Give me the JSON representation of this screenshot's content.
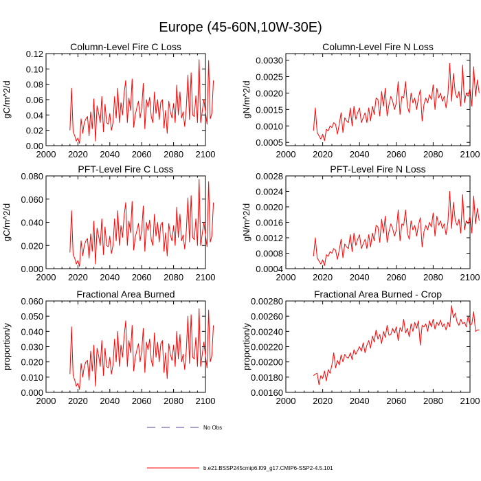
{
  "figure_title": "Europe (45-60N,10W-30E)",
  "legend": [
    {
      "label": "No Obs",
      "style": "dashed",
      "color": "#5a3d9b"
    },
    {
      "label": "b.e21.BSSP245cmip6.f09_g17.CMIP6-SSP2-4.5.101",
      "style": "solid",
      "color": "#ff0000"
    }
  ],
  "chart_data": [
    {
      "type": "line",
      "title": "Column-Level Fire C Loss",
      "xlabel": "",
      "ylabel": "gC/m^2/d",
      "xlim": [
        2000,
        2100
      ],
      "ylim": [
        0,
        0.12
      ],
      "xticks": [
        2000,
        2020,
        2040,
        2060,
        2080,
        2100
      ],
      "yticks": [
        0,
        0.02,
        0.04,
        0.06,
        0.08,
        0.1,
        0.12
      ],
      "ytick_labels": [
        "0.00",
        "0.02",
        "0.04",
        "0.06",
        "0.08",
        "0.10",
        "0.12"
      ],
      "x_start": 2015,
      "line_color": "#ff0000",
      "values": [
        0.02,
        0.075,
        0.018,
        0.013,
        0.006,
        0.01,
        0.003,
        0.035,
        0.016,
        0.03,
        0.035,
        0.038,
        0.013,
        0.044,
        0.022,
        0.061,
        0.006,
        0.052,
        0.042,
        0.03,
        0.064,
        0.018,
        0.054,
        0.03,
        0.028,
        0.042,
        0.02,
        0.03,
        0.064,
        0.036,
        0.075,
        0.03,
        0.056,
        0.04,
        0.069,
        0.085,
        0.03,
        0.062,
        0.046,
        0.087,
        0.024,
        0.04,
        0.05,
        0.058,
        0.036,
        0.049,
        0.081,
        0.022,
        0.06,
        0.05,
        0.063,
        0.038,
        0.03,
        0.07,
        0.042,
        0.06,
        0.034,
        0.057,
        0.06,
        0.023,
        0.046,
        0.016,
        0.058,
        0.044,
        0.036,
        0.055,
        0.03,
        0.079,
        0.04,
        0.07,
        0.036,
        0.044,
        0.025,
        0.05,
        0.092,
        0.034,
        0.095,
        0.04,
        0.038,
        0.065,
        0.03,
        0.112,
        0.03,
        0.045,
        0.06,
        0.044,
        0.028,
        0.111,
        0.035,
        0.042,
        0.085
      ]
    },
    {
      "type": "line",
      "title": "Column-Level Fire N Loss",
      "xlabel": "",
      "ylabel": "gN/m^2/d",
      "xlim": [
        2000,
        2100
      ],
      "ylim": [
        0.0004,
        0.0032
      ],
      "xticks": [
        2000,
        2020,
        2040,
        2060,
        2080,
        2100
      ],
      "yticks": [
        0.0005,
        0.001,
        0.0015,
        0.002,
        0.0025,
        0.003
      ],
      "ytick_labels": [
        "0.0005",
        "0.0010",
        "0.0015",
        "0.0020",
        "0.0025",
        "0.0030"
      ],
      "x_start": 2015,
      "line_color": "#ff0000",
      "values": [
        0.00085,
        0.00155,
        0.0008,
        0.0007,
        0.0006,
        0.00075,
        0.00055,
        0.0009,
        0.00085,
        0.001,
        0.00095,
        0.0011,
        0.00105,
        0.00075,
        0.00105,
        0.0014,
        0.0008,
        0.00125,
        0.00115,
        0.0011,
        0.00155,
        0.001,
        0.0016,
        0.0012,
        0.0014,
        0.00155,
        0.0011,
        0.00125,
        0.0014,
        0.0011,
        0.00155,
        0.00115,
        0.0016,
        0.00135,
        0.00185,
        0.0018,
        0.0013,
        0.00205,
        0.0016,
        0.00215,
        0.0013,
        0.00165,
        0.0019,
        0.00175,
        0.0015,
        0.0017,
        0.00235,
        0.00135,
        0.0019,
        0.00185,
        0.00235,
        0.0016,
        0.0014,
        0.002,
        0.0017,
        0.00185,
        0.0015,
        0.00185,
        0.0021,
        0.00115,
        0.00165,
        0.00185,
        0.0017,
        0.00195,
        0.0018,
        0.00225,
        0.0015,
        0.00215,
        0.00185,
        0.002,
        0.00175,
        0.0019,
        0.00155,
        0.00195,
        0.0029,
        0.00175,
        0.0026,
        0.002,
        0.00185,
        0.00205,
        0.0016,
        0.00285,
        0.0017,
        0.002,
        0.0019,
        0.00215,
        0.0016,
        0.0028,
        0.0019,
        0.0024,
        0.002
      ]
    },
    {
      "type": "line",
      "title": "PFT-Level Fire C Loss",
      "xlabel": "",
      "ylabel": "gC/m^2/d",
      "xlim": [
        2000,
        2100
      ],
      "ylim": [
        0,
        0.08
      ],
      "xticks": [
        2000,
        2020,
        2040,
        2060,
        2080,
        2100
      ],
      "yticks": [
        0,
        0.02,
        0.04,
        0.06,
        0.08
      ],
      "ytick_labels": [
        "0.000",
        "0.020",
        "0.040",
        "0.060",
        "0.080"
      ],
      "x_start": 2015,
      "line_color": "#ff0000",
      "values": [
        0.014,
        0.05,
        0.012,
        0.009,
        0.004,
        0.007,
        0.002,
        0.024,
        0.011,
        0.02,
        0.024,
        0.026,
        0.009,
        0.03,
        0.015,
        0.041,
        0.004,
        0.035,
        0.028,
        0.02,
        0.043,
        0.012,
        0.036,
        0.02,
        0.019,
        0.028,
        0.013,
        0.02,
        0.043,
        0.024,
        0.05,
        0.02,
        0.037,
        0.027,
        0.046,
        0.057,
        0.02,
        0.041,
        0.031,
        0.058,
        0.016,
        0.027,
        0.033,
        0.039,
        0.024,
        0.033,
        0.054,
        0.015,
        0.04,
        0.033,
        0.042,
        0.025,
        0.02,
        0.047,
        0.028,
        0.04,
        0.023,
        0.038,
        0.04,
        0.015,
        0.031,
        0.011,
        0.039,
        0.029,
        0.024,
        0.037,
        0.02,
        0.053,
        0.027,
        0.047,
        0.024,
        0.029,
        0.017,
        0.033,
        0.061,
        0.023,
        0.063,
        0.027,
        0.025,
        0.043,
        0.02,
        0.077,
        0.02,
        0.03,
        0.04,
        0.029,
        0.019,
        0.075,
        0.023,
        0.028,
        0.057
      ]
    },
    {
      "type": "line",
      "title": "PFT-Level Fire N Loss",
      "xlabel": "",
      "ylabel": "gN/m^2/d",
      "xlim": [
        2000,
        2100
      ],
      "ylim": [
        0.0004,
        0.0028
      ],
      "xticks": [
        2000,
        2020,
        2040,
        2060,
        2080,
        2100
      ],
      "yticks": [
        0.0004,
        0.0008,
        0.0012,
        0.0016,
        0.002,
        0.0024,
        0.0028
      ],
      "ytick_labels": [
        "0.0004",
        "0.0008",
        "0.0012",
        "0.0016",
        "0.0020",
        "0.0024",
        "0.0028"
      ],
      "x_start": 2015,
      "line_color": "#ff0000",
      "values": [
        0.00072,
        0.0012,
        0.00068,
        0.0006,
        0.00052,
        0.00063,
        0.00048,
        0.00076,
        0.00072,
        0.00084,
        0.0008,
        0.00092,
        0.00088,
        0.00064,
        0.00088,
        0.00116,
        0.00068,
        0.00104,
        0.00096,
        0.00092,
        0.00128,
        0.00084,
        0.00132,
        0.001,
        0.00116,
        0.00128,
        0.00092,
        0.00104,
        0.00116,
        0.00092,
        0.00128,
        0.00096,
        0.00132,
        0.00112,
        0.00152,
        0.00148,
        0.00108,
        0.00168,
        0.00132,
        0.00176,
        0.00108,
        0.00136,
        0.00156,
        0.00144,
        0.00124,
        0.0014,
        0.00192,
        0.00112,
        0.00156,
        0.00152,
        0.00192,
        0.00132,
        0.00116,
        0.00164,
        0.0014,
        0.00152,
        0.00124,
        0.00152,
        0.00172,
        0.00096,
        0.00136,
        0.00152,
        0.0014,
        0.0016,
        0.00148,
        0.00184,
        0.00124,
        0.00176,
        0.00152,
        0.00164,
        0.00144,
        0.00156,
        0.00128,
        0.0016,
        0.0024,
        0.00144,
        0.00212,
        0.00164,
        0.00152,
        0.00168,
        0.00132,
        0.00232,
        0.0014,
        0.00164,
        0.00156,
        0.00176,
        0.00132,
        0.00228,
        0.00156,
        0.00196,
        0.00164
      ]
    },
    {
      "type": "line",
      "title": "Fractional Area Burned",
      "xlabel": "",
      "ylabel": "proportion/y",
      "xlim": [
        2000,
        2100
      ],
      "ylim": [
        0,
        0.06
      ],
      "xticks": [
        2000,
        2020,
        2040,
        2060,
        2080,
        2100
      ],
      "yticks": [
        0,
        0.01,
        0.02,
        0.03,
        0.04,
        0.05,
        0.06
      ],
      "ytick_labels": [
        "0.000",
        "0.010",
        "0.020",
        "0.030",
        "0.040",
        "0.050",
        "0.060"
      ],
      "x_start": 2015,
      "line_color": "#ff0000",
      "values": [
        0.012,
        0.043,
        0.011,
        0.008,
        0.004,
        0.006,
        0.002,
        0.019,
        0.01,
        0.017,
        0.02,
        0.021,
        0.008,
        0.027,
        0.014,
        0.031,
        0.004,
        0.029,
        0.024,
        0.017,
        0.034,
        0.011,
        0.029,
        0.017,
        0.016,
        0.023,
        0.012,
        0.018,
        0.035,
        0.02,
        0.04,
        0.017,
        0.031,
        0.023,
        0.037,
        0.047,
        0.017,
        0.034,
        0.026,
        0.044,
        0.014,
        0.023,
        0.028,
        0.032,
        0.02,
        0.027,
        0.042,
        0.013,
        0.033,
        0.028,
        0.035,
        0.021,
        0.017,
        0.039,
        0.023,
        0.033,
        0.02,
        0.032,
        0.034,
        0.013,
        0.026,
        0.009,
        0.032,
        0.025,
        0.021,
        0.031,
        0.017,
        0.04,
        0.022,
        0.038,
        0.02,
        0.025,
        0.015,
        0.028,
        0.05,
        0.019,
        0.051,
        0.023,
        0.022,
        0.036,
        0.017,
        0.055,
        0.017,
        0.025,
        0.033,
        0.024,
        0.016,
        0.054,
        0.02,
        0.024,
        0.044
      ]
    },
    {
      "type": "line",
      "title": "Fractional Area Burned - Crop",
      "xlabel": "",
      "ylabel": "proportion/y",
      "xlim": [
        2000,
        2100
      ],
      "ylim": [
        0.0016,
        0.0028
      ],
      "xticks": [
        2000,
        2020,
        2040,
        2060,
        2080,
        2100
      ],
      "yticks": [
        0.0016,
        0.0018,
        0.002,
        0.0022,
        0.0024,
        0.0026,
        0.0028
      ],
      "ytick_labels": [
        "0.00160",
        "0.00180",
        "0.00200",
        "0.00220",
        "0.00240",
        "0.00260",
        "0.00280"
      ],
      "x_start": 2015,
      "line_color": "#ff0000",
      "values": [
        0.00182,
        0.00184,
        0.00185,
        0.0017,
        0.00182,
        0.00178,
        0.00188,
        0.00175,
        0.0019,
        0.00185,
        0.00196,
        0.00212,
        0.00192,
        0.00202,
        0.00196,
        0.00209,
        0.002,
        0.0021,
        0.00206,
        0.00205,
        0.00212,
        0.00203,
        0.00216,
        0.0021,
        0.00215,
        0.0022,
        0.00214,
        0.00225,
        0.00212,
        0.00222,
        0.00228,
        0.00218,
        0.00234,
        0.00226,
        0.00242,
        0.0023,
        0.00236,
        0.00224,
        0.0024,
        0.00232,
        0.00248,
        0.00235,
        0.00236,
        0.00244,
        0.00238,
        0.00246,
        0.00228,
        0.00245,
        0.0024,
        0.00256,
        0.00238,
        0.00244,
        0.00233,
        0.0025,
        0.0024,
        0.00252,
        0.00244,
        0.00254,
        0.00222,
        0.00248,
        0.00246,
        0.0025,
        0.0024,
        0.00254,
        0.00246,
        0.00256,
        0.00243,
        0.00252,
        0.00248,
        0.00255,
        0.00246,
        0.0025,
        0.00242,
        0.00252,
        0.00246,
        0.00274,
        0.00258,
        0.00264,
        0.00252,
        0.00248,
        0.00256,
        0.0025,
        0.00252,
        0.00246,
        0.0026,
        0.00248,
        0.0025,
        0.00266,
        0.0024,
        0.00242,
        0.00242
      ]
    }
  ]
}
